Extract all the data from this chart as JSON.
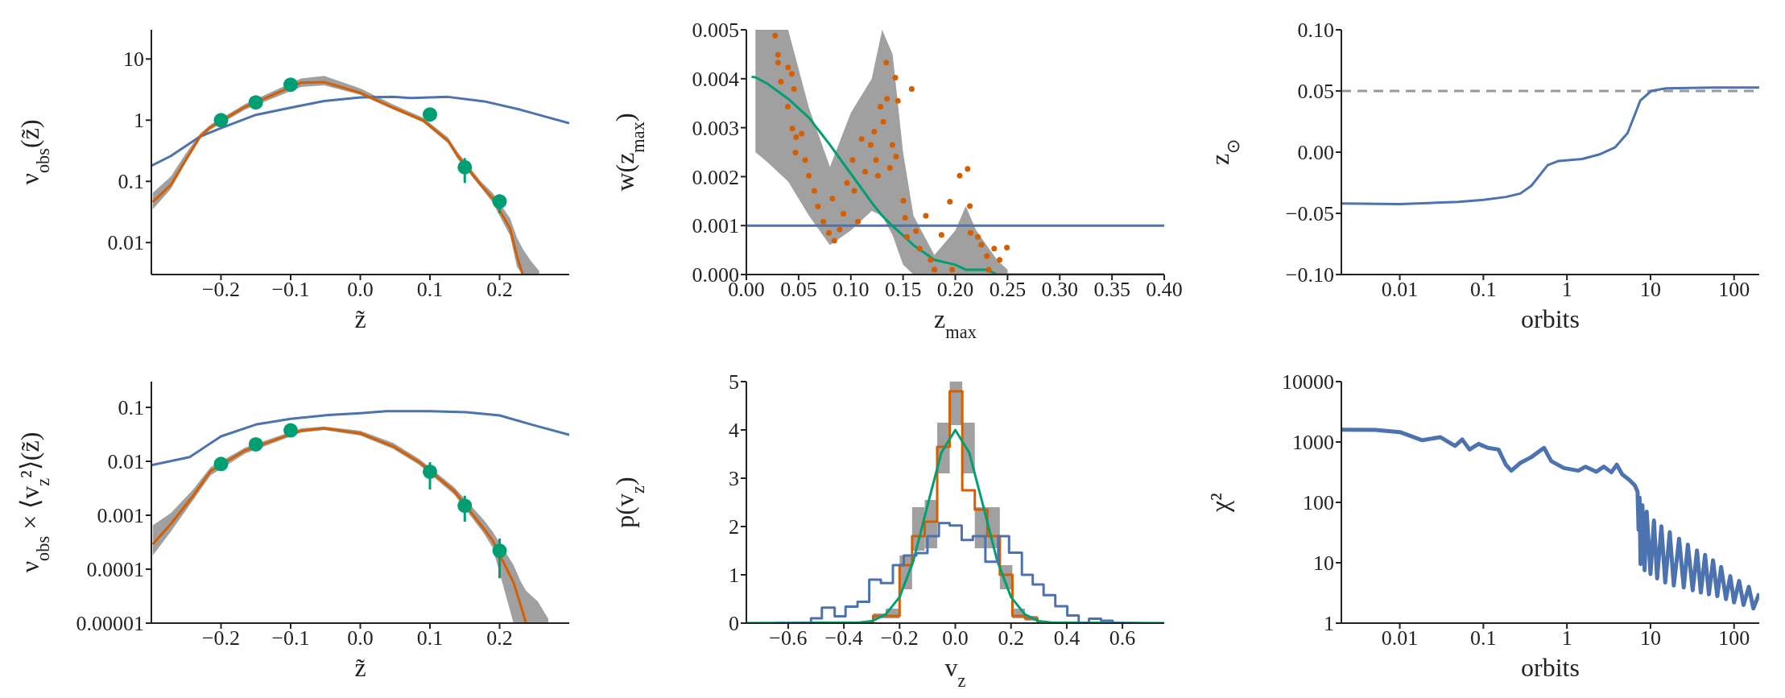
{
  "chart_data": [
    {
      "type": "line",
      "xlabel": "z̃",
      "ylabel": "ν$_{obs}$(z̃)",
      "log": "y",
      "xlim": [
        -0.3,
        0.3
      ],
      "ylim": [
        0.003,
        30
      ],
      "xticks": [
        {
          "value": -0.2,
          "label": "−0.2"
        },
        {
          "value": -0.1,
          "label": "−0.1"
        },
        {
          "value": 0,
          "label": "0.0"
        },
        0.1,
        0.2
      ],
      "yticks": [
        0.01,
        0.1,
        1,
        10
      ],
      "series": [
        {
          "type": "line",
          "color": "#4c72b0",
          "x": [
            -0.3,
            -0.272,
            -0.23,
            -0.2,
            -0.15,
            -0.1,
            -0.052,
            0,
            0.047,
            0.073,
            0.126,
            0.178,
            0.23,
            0.3
          ],
          "values": [
            0.18,
            0.26,
            0.54,
            0.74,
            1.22,
            1.6,
            2.06,
            2.35,
            2.4,
            2.3,
            2.4,
            2.03,
            1.48,
            0.89
          ]
        },
        {
          "type": "line",
          "color": "#d55e00",
          "x": [
            -0.298,
            -0.272,
            -0.251,
            -0.23,
            -0.215,
            -0.165,
            -0.085,
            -0.052,
            0,
            0.047,
            0.09,
            0.126,
            0.14,
            0.173,
            0.19,
            0.215,
            0.225,
            0.233,
            0.245,
            0.257
          ],
          "values": [
            0.046,
            0.088,
            0.22,
            0.54,
            0.77,
            1.66,
            4.1,
            4.2,
            2.8,
            1.6,
            1.0,
            0.46,
            0.26,
            0.088,
            0.053,
            0.017,
            0.006,
            0.003,
            null,
            null
          ],
          "lower": [
            0.035,
            0.075,
            0.2,
            0.5,
            0.7,
            1.5,
            3.5,
            3.7,
            2.6,
            1.5,
            0.92,
            0.42,
            0.23,
            0.08,
            0.045,
            0.013,
            0.004,
            0.003,
            0.003,
            0.003
          ],
          "upper": [
            0.065,
            0.12,
            0.28,
            0.6,
            0.85,
            1.85,
            4.8,
            5.3,
            3.3,
            1.8,
            1.1,
            0.52,
            0.3,
            0.1,
            0.065,
            0.025,
            0.012,
            0.008,
            0.005,
            0.0034
          ]
        },
        {
          "type": "scatter",
          "color": "#009e73",
          "marker": "circle",
          "x": [
            -0.2,
            -0.15,
            -0.1,
            0.1,
            0.15,
            0.2
          ],
          "values": [
            1.0,
            1.95,
            3.8,
            1.24,
            0.17,
            0.047
          ],
          "errors": [
            null,
            null,
            null,
            [
              0.96,
              1.52
            ],
            [
              0.094,
              0.24
            ],
            [
              0.03,
              0.061
            ]
          ]
        }
      ]
    },
    {
      "type": "scatter",
      "xlabel": "z$_{max}$",
      "ylabel": "w(z$_{max}$)",
      "xlim": [
        0,
        0.4
      ],
      "ylim": [
        0,
        0.005
      ],
      "xticks": [
        {
          "value": 0,
          "label": "0.00"
        },
        0.05,
        {
          "value": 0.1,
          "label": "0.10"
        },
        0.15,
        {
          "value": 0.2,
          "label": "0.20"
        },
        0.25,
        {
          "value": 0.3,
          "label": "0.30"
        },
        0.35,
        {
          "value": 0.4,
          "label": "0.40"
        }
      ],
      "yticks": [
        {
          "value": 0,
          "label": "0.000"
        },
        0.001,
        0.002,
        0.003,
        0.004,
        0.005
      ],
      "ref_lines": [
        {
          "axis": "y",
          "value": 0.001,
          "color": "#4c72b0"
        }
      ],
      "series": [
        {
          "type": "scatter",
          "color": "#d55e00",
          "marker": "circle",
          "x": [
            0.0275,
            0.0303,
            0.0303,
            0.033,
            0.04,
            0.0435,
            0.0456,
            0.0397,
            0.044,
            0.0477,
            0.047,
            0.0529,
            0.0563,
            0.0598,
            0.065,
            0.0685,
            0.0737,
            0.079,
            0.0842,
            0.0894,
            0.0824,
            0.0929,
            0.0963,
            0.1016,
            0.1033,
            0.1068,
            0.1103,
            0.1137,
            0.119,
            0.1224,
            0.1242,
            0.1259,
            0.1283,
            0.1311,
            0.1339,
            0.1346,
            0.1374,
            0.1398,
            0.1433,
            0.1426,
            0.145,
            0.1503,
            0.152,
            0.1537,
            0.1583,
            0.1624,
            0.1659,
            0.1718,
            0.1763,
            0.1868,
            0.1948,
            0.2042,
            0.2118,
            0.2139,
            0.2146,
            0.2216,
            0.225,
            0.2303,
            0.2372,
            0.2424,
            0.2494,
            0.197,
            0.232,
            0.18
          ],
          "values": [
            0.00488,
            0.00449,
            0.00433,
            0.00394,
            0.00423,
            0.0041,
            0.00379,
            0.00343,
            0.00298,
            0.00281,
            0.00249,
            0.00288,
            0.00234,
            0.00202,
            0.00171,
            0.00139,
            0.00108,
            0.00085,
            0.00069,
            0.00092,
            0.00155,
            0.00124,
            0.00187,
            0.00234,
            0.00171,
            0.00108,
            0.00277,
            0.0021,
            0.00265,
            0.00292,
            0.00234,
            0.00202,
            0.00343,
            0.00312,
            0.00433,
            0.00359,
            0.00218,
            0.00265,
            0.00241,
            0.00402,
            0.00355,
            0.00151,
            0.00116,
            0.00077,
            0.00379,
            0.00089,
            0.00053,
            0.0012,
            0.0003,
            0.00081,
            0.00149,
            0.00202,
            0.00216,
            0.0014,
            0.00085,
            0.00077,
            0.00061,
            0.00038,
            0.00053,
            0.0003,
            0.00055,
            0.0001,
            0.0001,
            0.0001
          ]
        },
        {
          "type": "line",
          "color": "#009e73",
          "x": [
            0.005,
            0.0087,
            0.02,
            0.04,
            0.06,
            0.08,
            0.1,
            0.12,
            0.13,
            0.14,
            0.15,
            0.16,
            0.18,
            0.2,
            0.21,
            0.22,
            0.23,
            0.24,
            0.25,
            0.3,
            0.4
          ],
          "values": [
            0.00404,
            0.00403,
            0.0039,
            0.00359,
            0.0032,
            0.00265,
            0.00206,
            0.00147,
            0.0012,
            0.00099,
            0.0008,
            0.0006,
            0.0003,
            0.0002,
            0.0001,
            0.0001,
            0.0001,
            0,
            0,
            0,
            0
          ],
          "lower": [
            null,
            0.0025,
            0.0023,
            0.0019,
            0.0012,
            0.0006,
            0.0009,
            0.0013,
            0.0012,
            0.0008,
            0.0002,
            0,
            0,
            0,
            0,
            0,
            0,
            0,
            0,
            null,
            null
          ],
          "upper": [
            null,
            0.005,
            0.005,
            0.005,
            0.0034,
            0.0022,
            0.0033,
            0.004,
            0.005,
            0.0045,
            0.0025,
            0.0012,
            0.0004,
            0.0009,
            0.0014,
            0.0009,
            0.0006,
            0.0003,
            0.0001,
            null,
            null
          ]
        }
      ]
    },
    {
      "type": "line",
      "xlabel": "orbits",
      "ylabel": "z$_{⊙}$",
      "log": "x",
      "xlim": [
        0.002,
        200
      ],
      "ylim": [
        -0.1,
        0.1
      ],
      "xticks": [
        0.01,
        0.1,
        1,
        10,
        100
      ],
      "yticks": [
        {
          "value": -0.1,
          "label": "−0.10"
        },
        {
          "value": -0.05,
          "label": "−0.05"
        },
        {
          "value": 0,
          "label": "0.00"
        },
        0.05,
        {
          "value": 0.1,
          "label": "0.10"
        }
      ],
      "ref_lines": [
        {
          "axis": "y",
          "value": 0.05,
          "color": "#999999",
          "line_style": "dashed"
        }
      ],
      "series": [
        {
          "color": "#4c72b0",
          "x": [
            0.002,
            0.01,
            0.0506,
            0.1,
            0.187,
            0.277,
            0.375,
            0.589,
            0.794,
            1.52,
            2.51,
            3.75,
            5.32,
            7.55,
            10.2,
            15.2,
            56,
            200
          ],
          "values": [
            -0.0419,
            -0.0425,
            -0.0406,
            -0.039,
            -0.0366,
            -0.0338,
            -0.0275,
            -0.0106,
            -0.0072,
            -0.0056,
            -0.0016,
            0.0038,
            0.0156,
            0.0422,
            0.05,
            0.0522,
            0.0528,
            0.0528
          ]
        }
      ]
    },
    {
      "type": "line",
      "xlabel": "z̃",
      "ylabel": "ν$_{obs}$ × ⟨v$_{z}$²⟩(z̃)",
      "log": "y",
      "xlim": [
        -0.3,
        0.3
      ],
      "ylim": [
        1e-05,
        0.3
      ],
      "xticks": [
        {
          "value": -0.2,
          "label": "−0.2"
        },
        {
          "value": -0.1,
          "label": "−0.1"
        },
        {
          "value": 0,
          "label": "0.0"
        },
        0.1,
        0.2
      ],
      "yticks": [
        {
          "value": 1e-05,
          "label": "0.00001"
        },
        0.0001,
        0.001,
        0.01,
        0.1
      ],
      "series": [
        {
          "type": "line",
          "color": "#4c72b0",
          "x": [
            -0.3,
            -0.245,
            -0.2,
            -0.15,
            -0.1,
            -0.046,
            0,
            0.037,
            0.1,
            0.152,
            0.2,
            0.251,
            0.3
          ],
          "values": [
            0.0085,
            0.012,
            0.029,
            0.048,
            0.061,
            0.072,
            0.078,
            0.085,
            0.085,
            0.081,
            0.071,
            0.046,
            0.031
          ]
        },
        {
          "type": "line",
          "color": "#d55e00",
          "x": [
            -0.298,
            -0.272,
            -0.24,
            -0.215,
            -0.165,
            -0.085,
            -0.052,
            0,
            0.047,
            0.085,
            0.135,
            0.178,
            0.19,
            0.22,
            0.23,
            0.238,
            0.255,
            0.27
          ],
          "values": [
            0.00029,
            0.00069,
            0.0023,
            0.0066,
            0.016,
            0.037,
            0.041,
            0.033,
            0.019,
            0.0096,
            0.0028,
            0.00055,
            0.00034,
            5.7e-05,
            2.2e-05,
            1e-05,
            null,
            null
          ],
          "lower": [
            0.00018,
            0.0005,
            0.0019,
            0.0055,
            0.014,
            0.034,
            0.038,
            0.03,
            0.017,
            0.0085,
            0.0024,
            0.00045,
            0.00025,
            1e-05,
            1e-05,
            1e-05,
            1e-05,
            1e-05
          ],
          "upper": [
            0.00065,
            0.0011,
            0.003,
            0.0078,
            0.018,
            0.041,
            0.044,
            0.037,
            0.022,
            0.011,
            0.0033,
            0.0008,
            0.0005,
            0.00012,
            6e-05,
            4e-05,
            2.5e-05,
            1.2e-05
          ]
        },
        {
          "type": "scatter",
          "color": "#009e73",
          "marker": "circle",
          "x": [
            -0.2,
            -0.15,
            -0.1,
            0.1,
            0.15,
            0.2
          ],
          "values": [
            0.0089,
            0.0206,
            0.0374,
            0.0064,
            0.0015,
            0.00022
          ],
          "errors": [
            null,
            null,
            null,
            [
              0.003,
              0.0096
            ],
            [
              0.00076,
              0.0023
            ],
            [
              6.8e-05,
              0.00037
            ]
          ]
        }
      ]
    },
    {
      "type": "histogram",
      "xlabel": "v$_{z}$",
      "ylabel": "p(v$_{z}$)",
      "xlim": [
        -0.75,
        0.75
      ],
      "ylim": [
        0,
        5
      ],
      "xticks": [
        {
          "value": -0.6,
          "label": "−0.6"
        },
        {
          "value": -0.4,
          "label": "−0.4"
        },
        {
          "value": -0.2,
          "label": "−0.2"
        },
        {
          "value": 0,
          "label": "0.0"
        },
        0.2,
        0.4,
        0.6
      ],
      "yticks": [
        0,
        1,
        2,
        3,
        4,
        5
      ],
      "series": [
        {
          "type": "histogram",
          "color": "#a0a0a0",
          "bins": [
            -0.295,
            -0.25,
            -0.2,
            -0.155,
            -0.11,
            -0.065,
            -0.02,
            0.025,
            0.07,
            0.115,
            0.16,
            0.205,
            0.25,
            0.295
          ],
          "base": [
            0.1,
            0.1,
            0.7,
            1.5,
            1.55,
            3.1,
            4.1,
            3.1,
            1.55,
            1.55,
            0.7,
            0.1,
            0.05
          ],
          "values": [
            0.1,
            0.2,
            0.7,
            0.9,
            1.0,
            1.05,
            0.9,
            1.05,
            0.85,
            0.85,
            0.5,
            0.2,
            0.1
          ]
        },
        {
          "type": "histogram",
          "color": "#d55e00",
          "bins": [
            -0.295,
            -0.25,
            -0.2,
            -0.155,
            -0.11,
            -0.065,
            -0.02,
            0.025,
            0.07,
            0.115,
            0.16,
            0.205,
            0.25,
            0.295
          ],
          "values": [
            0.15,
            0.15,
            1.2,
            1.8,
            2.1,
            3.65,
            4.8,
            2.75,
            2.35,
            1.8,
            1.0,
            0.15,
            0.1
          ]
        },
        {
          "type": "line",
          "color": "#009e73",
          "x": [
            -0.75,
            -0.4,
            -0.35,
            -0.3,
            -0.25,
            -0.2,
            -0.15,
            -0.1,
            -0.05,
            0,
            0.05,
            0.1,
            0.15,
            0.2,
            0.25,
            0.3,
            0.35,
            0.4,
            0.75
          ],
          "values": [
            0,
            0.01,
            0.01,
            0.04,
            0.18,
            0.54,
            1.3,
            2.43,
            3.53,
            4,
            3.53,
            2.43,
            1.3,
            0.54,
            0.18,
            0.04,
            0.01,
            0.01,
            0
          ]
        },
        {
          "type": "histogram",
          "color": "#4c72b0",
          "bins": [
            -0.644,
            -0.6,
            -0.557,
            -0.518,
            -0.479,
            -0.433,
            -0.394,
            -0.351,
            -0.309,
            -0.267,
            -0.224,
            -0.185,
            -0.14,
            -0.1,
            -0.059,
            -0.02,
            0.023,
            0.063,
            0.108,
            0.154,
            0.193,
            0.239,
            0.278,
            0.317,
            0.359,
            0.402,
            0.443,
            0.48,
            0.523,
            0.565,
            0.604,
            0.65
          ],
          "values": [
            0,
            0,
            0,
            0.1,
            0.32,
            0.14,
            0.34,
            0.44,
            0.9,
            0.83,
            1.2,
            1.4,
            1.45,
            1.8,
            2.07,
            2.02,
            1.72,
            1.8,
            1.27,
            1.8,
            1.46,
            1.0,
            0.8,
            0.58,
            0.35,
            0.16,
            0,
            0.09,
            0.05,
            0,
            0
          ]
        }
      ]
    },
    {
      "type": "line",
      "xlabel": "orbits",
      "ylabel": "χ²",
      "log": "xy",
      "xlim": [
        0.002,
        200
      ],
      "ylim": [
        1,
        10000
      ],
      "xticks": [
        0.01,
        0.1,
        1,
        10,
        100
      ],
      "yticks": [
        1,
        10,
        100,
        1000,
        10000
      ],
      "series": [
        {
          "color": "#4c72b0",
          "x": [
            0.002,
            0.0051,
            0.01,
            0.0186,
            0.0307,
            0.0458,
            0.0559,
            0.0683,
            0.0877,
            0.113,
            0.152,
            0.186,
            0.216,
            0.277,
            0.374,
            0.532,
            0.65,
            0.92,
            1.37,
            1.67,
            2.25,
            2.77,
            3.4,
            3.95,
            4.59,
            5.6,
            6.5,
            7,
            7.2,
            7.4,
            7.6,
            8,
            8.5,
            9,
            10,
            11,
            12,
            13.5,
            15,
            17,
            19,
            22,
            25,
            28,
            32,
            36,
            40,
            45,
            50,
            56,
            63,
            70,
            80,
            90,
            100,
            115,
            130,
            150,
            170,
            200
          ],
          "values": [
            1600,
            1580,
            1460,
            1070,
            1200,
            860,
            1100,
            750,
            930,
            800,
            750,
            420,
            335,
            450,
            560,
            800,
            480,
            370,
            335,
            390,
            322,
            390,
            315,
            420,
            290,
            235,
            190,
            150,
            35,
            120,
            9.5,
            90,
            7.5,
            70,
            6.5,
            50,
            5.5,
            40,
            4.7,
            32,
            4.2,
            25,
            3.9,
            20,
            3.5,
            16,
            3.2,
            13.5,
            3.0,
            11,
            2.8,
            8.5,
            2.5,
            6,
            2.2,
            5,
            2.0,
            4,
            1.75,
            3.1
          ]
        }
      ]
    }
  ]
}
